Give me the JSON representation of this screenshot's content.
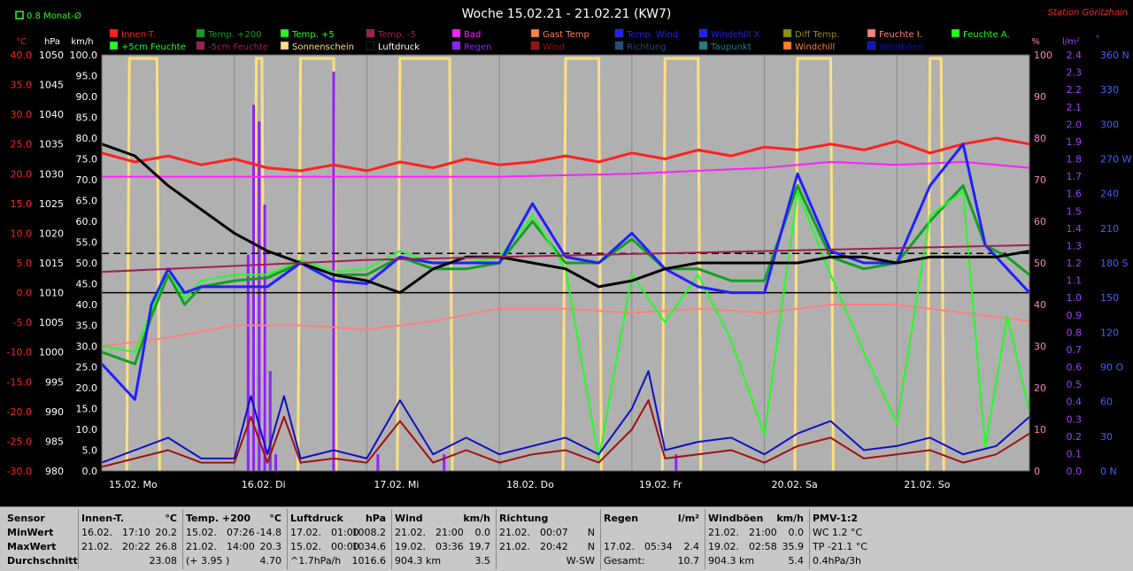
{
  "header": {
    "title": "Woche 15.02.21 - 21.02.21 (KW7)",
    "station": "Station Göritzhain",
    "month_avg_label": "0.8 Monat-Ø"
  },
  "legend": [
    {
      "label": "Innen-T.",
      "color": "#ff2020"
    },
    {
      "label": "Temp. +200",
      "color": "#10a020"
    },
    {
      "label": "Temp. +5",
      "color": "#20ff20"
    },
    {
      "label": "Temp. -5",
      "color": "#a02050"
    },
    {
      "label": "Bad",
      "color": "#ff20ff"
    },
    {
      "label": "Gast Temp",
      "color": "#ff8040"
    },
    {
      "label": "Temp. Wind",
      "color": "#2020ff"
    },
    {
      "label": "Windchill X",
      "color": "#2020ff"
    },
    {
      "label": "Diff Temp.",
      "color": "#909010"
    },
    {
      "label": "Feuchte I.",
      "color": "#ff8080"
    },
    {
      "label": "Feuchte A.",
      "color": "#20ff20"
    },
    {
      "label": "+5cm Feuchte",
      "color": "#20ff20"
    },
    {
      "label": "-5cm Feuchte",
      "color": "#a02050"
    },
    {
      "label": "Sonnenschein",
      "color": "#ffe080"
    },
    {
      "label": "Luftdruck",
      "color": "#000000"
    },
    {
      "label": "Regen",
      "color": "#9020ff"
    },
    {
      "label": "Wind",
      "color": "#a01010"
    },
    {
      "label": "Richtung",
      "color": "#205080"
    },
    {
      "label": "Taupunkt",
      "color": "#208080"
    },
    {
      "label": "Windchill",
      "color": "#ff8020"
    },
    {
      "label": "Windböen",
      "color": "#1010c0"
    }
  ],
  "axes": {
    "temp_unit": "°C",
    "hpa_unit": "hPa",
    "kmh_unit": "km/h",
    "pct_unit": "%",
    "rain_unit": "l/m²",
    "dir_unit": "°",
    "temp_ticks": [
      "40.0",
      "35.0",
      "30.0",
      "25.0",
      "20.0",
      "15.0",
      "10.0",
      "5.0",
      "0.0",
      "-5.0",
      "-10.0",
      "-15.0",
      "-20.0",
      "-25.0",
      "-30.0"
    ],
    "hpa_ticks": [
      "1050",
      "1045",
      "1040",
      "1035",
      "1030",
      "1025",
      "1020",
      "1015",
      "1010",
      "1005",
      "1000",
      "995",
      "990",
      "985",
      "980"
    ],
    "kmh_ticks": [
      "100.0",
      "95.0",
      "90.0",
      "85.0",
      "80.0",
      "75.0",
      "70.0",
      "65.0",
      "60.0",
      "55.0",
      "50.0",
      "45.0",
      "40.0",
      "35.0",
      "30.0",
      "25.0",
      "20.0",
      "15.0",
      "10.0",
      "5.0",
      "0.0"
    ],
    "pct_ticks": [
      "100",
      "90",
      "80",
      "70",
      "60",
      "50",
      "40",
      "30",
      "20",
      "10",
      "0"
    ],
    "rain_ticks": [
      "2.4",
      "2.3",
      "2.2",
      "2.1",
      "2.0",
      "1.9",
      "1.8",
      "1.7",
      "1.6",
      "1.5",
      "1.4",
      "1.3",
      "1.2",
      "1.1",
      "1.0",
      "0.9",
      "0.8",
      "0.7",
      "0.6",
      "0.5",
      "0.4",
      "0.3",
      "0.2",
      "0.1",
      "0.0"
    ],
    "dir_ticks": [
      "360 N",
      "330",
      "300",
      "270 W",
      "240",
      "210",
      "180 S",
      "150",
      "120",
      "90 O",
      "60",
      "30",
      "0 N"
    ],
    "day_labels": [
      "15.02. Mo",
      "16.02. Di",
      "17.02. Mi",
      "18.02. Do",
      "19.02. Fr",
      "20.02. Sa",
      "21.02. So"
    ]
  },
  "chart_data": {
    "type": "line",
    "title": "Woche 15.02.21 - 21.02.21 (KW7)",
    "x_unit": "hours since 15.02. 00:00",
    "xlim": [
      0,
      168
    ],
    "ylim_temp": [
      -30,
      40
    ],
    "ylim_kmh": [
      0,
      100
    ],
    "ylim_pct": [
      0,
      100
    ],
    "ylim_rain": [
      0,
      2.5
    ],
    "ylim_hpa": [
      980,
      1050
    ],
    "series": [
      {
        "name": "Innen-T.",
        "axis": "temp",
        "color": "#ff2020",
        "width": 3,
        "x": [
          0,
          6,
          12,
          18,
          24,
          30,
          36,
          42,
          48,
          54,
          60,
          66,
          72,
          78,
          84,
          90,
          96,
          102,
          108,
          114,
          120,
          126,
          132,
          138,
          144,
          150,
          156,
          162,
          168
        ],
        "y": [
          23.5,
          22.0,
          23.0,
          21.5,
          22.5,
          21.0,
          20.5,
          21.5,
          20.5,
          22.0,
          21.0,
          22.5,
          21.5,
          22.0,
          23.0,
          22.0,
          23.5,
          22.5,
          24.0,
          23.0,
          24.5,
          24.0,
          25.0,
          24.0,
          25.5,
          23.5,
          25.0,
          26.0,
          25.0
        ]
      },
      {
        "name": "Feuchte I.",
        "axis": "pct",
        "color": "#ff8080",
        "width": 2,
        "x": [
          0,
          12,
          24,
          36,
          48,
          60,
          72,
          84,
          96,
          108,
          120,
          132,
          144,
          156,
          168
        ],
        "y": [
          30,
          32,
          35,
          35,
          34,
          36,
          39,
          39,
          38,
          39,
          38,
          40,
          40,
          38,
          36
        ]
      },
      {
        "name": "Bad",
        "axis": "temp",
        "color": "#ff20ff",
        "width": 2,
        "x": [
          0,
          24,
          48,
          72,
          96,
          108,
          120,
          132,
          144,
          156,
          168
        ],
        "y": [
          19.5,
          19.5,
          19.5,
          19.5,
          20.0,
          20.5,
          21.0,
          22.0,
          21.5,
          22.0,
          21.0
        ]
      },
      {
        "name": "Temp. +200",
        "axis": "temp",
        "color": "#10a020",
        "width": 3,
        "x": [
          0,
          6,
          9,
          12,
          15,
          18,
          24,
          30,
          36,
          42,
          48,
          54,
          60,
          66,
          72,
          78,
          84,
          90,
          96,
          102,
          108,
          114,
          120,
          126,
          132,
          138,
          144,
          150,
          156,
          160,
          164,
          168
        ],
        "y": [
          -10,
          -12,
          -4,
          3,
          -2,
          1,
          2,
          2.5,
          5,
          3,
          3,
          6,
          4,
          4,
          5,
          12,
          5,
          5,
          9,
          4,
          4,
          2,
          2,
          18,
          6,
          4,
          5,
          12,
          18,
          8,
          6,
          3
        ]
      },
      {
        "name": "Temp. +5",
        "axis": "temp",
        "color": "#20ff20",
        "width": 2,
        "x": [
          0,
          6,
          9,
          12,
          15,
          18,
          24,
          30,
          36,
          42,
          48,
          54,
          60,
          66,
          72,
          78,
          84,
          90,
          96,
          102,
          108,
          114,
          120,
          126,
          132,
          138,
          144,
          150,
          156,
          160,
          164,
          168
        ],
        "y": [
          -9,
          -10,
          -3,
          4,
          -1,
          2,
          3,
          3,
          5.5,
          3.5,
          4,
          7,
          5,
          5,
          6,
          13,
          4,
          -28,
          3,
          -5,
          3,
          -8,
          -24,
          17,
          3,
          -10,
          -22,
          13,
          17,
          -26,
          -4,
          -20
        ]
      },
      {
        "name": "Temp. Wind",
        "axis": "temp",
        "color": "#2020ff",
        "width": 3,
        "x": [
          0,
          6,
          9,
          12,
          15,
          18,
          24,
          30,
          36,
          42,
          48,
          54,
          60,
          66,
          72,
          78,
          84,
          90,
          96,
          102,
          108,
          114,
          120,
          126,
          132,
          138,
          144,
          150,
          156,
          160,
          164,
          168
        ],
        "y": [
          -12,
          -18,
          -2,
          4,
          0,
          1,
          1,
          1,
          5,
          2,
          1.5,
          6,
          5,
          5,
          5,
          15,
          6,
          5,
          10,
          4,
          1,
          0,
          0,
          20,
          7,
          5,
          5,
          18,
          25,
          8,
          4,
          0
        ]
      },
      {
        "name": "Luftdruck",
        "axis": "hpa",
        "color": "#000000",
        "width": 3,
        "x": [
          0,
          6,
          12,
          18,
          24,
          30,
          36,
          42,
          48,
          54,
          60,
          66,
          72,
          78,
          84,
          90,
          96,
          102,
          108,
          114,
          120,
          126,
          132,
          138,
          144,
          150,
          156,
          162,
          168
        ],
        "y": [
          1035,
          1033,
          1028,
          1024,
          1020,
          1017,
          1015,
          1013,
          1012,
          1010,
          1014,
          1016,
          1016,
          1015,
          1014,
          1011,
          1012,
          1014,
          1015,
          1015,
          1015,
          1015,
          1016,
          1016,
          1015,
          1016,
          1016,
          1016,
          1017
        ]
      },
      {
        "name": "Temp. -5",
        "axis": "temp",
        "color": "#a02050",
        "width": 2,
        "x": [
          0,
          24,
          48,
          72,
          96,
          120,
          144,
          168
        ],
        "y": [
          3.5,
          4.5,
          5.5,
          6.0,
          6.5,
          7.0,
          7.5,
          8.0
        ]
      },
      {
        "name": "Windböen",
        "axis": "kmh",
        "color": "#1010c0",
        "width": 2,
        "x": [
          0,
          6,
          12,
          18,
          24,
          27,
          30,
          33,
          36,
          42,
          48,
          54,
          60,
          66,
          72,
          78,
          84,
          90,
          96,
          99,
          102,
          108,
          114,
          120,
          126,
          132,
          138,
          144,
          150,
          156,
          162,
          168
        ],
        "y": [
          2,
          5,
          8,
          3,
          3,
          18,
          4,
          18,
          3,
          5,
          3,
          17,
          4,
          8,
          4,
          6,
          8,
          4,
          15,
          24,
          5,
          7,
          8,
          4,
          9,
          12,
          5,
          6,
          8,
          4,
          6,
          13
        ]
      },
      {
        "name": "Wind",
        "axis": "kmh",
        "color": "#a01010",
        "width": 2,
        "x": [
          0,
          6,
          12,
          18,
          24,
          27,
          30,
          33,
          36,
          42,
          48,
          54,
          60,
          66,
          72,
          78,
          84,
          90,
          96,
          99,
          102,
          108,
          114,
          120,
          126,
          132,
          138,
          144,
          150,
          156,
          162,
          168
        ],
        "y": [
          1,
          3,
          5,
          2,
          2,
          13,
          2,
          13,
          2,
          3,
          2,
          12,
          2,
          5,
          2,
          4,
          5,
          2,
          10,
          17,
          3,
          4,
          5,
          2,
          6,
          8,
          3,
          4,
          5,
          2,
          4,
          9
        ]
      }
    ],
    "sunshine_intervals": [
      [
        5,
        10
      ],
      [
        28,
        29
      ],
      [
        36,
        42
      ],
      [
        54,
        63
      ],
      [
        84,
        90
      ],
      [
        102,
        108
      ],
      [
        126,
        132
      ],
      [
        150,
        152
      ]
    ],
    "rain_bars": [
      {
        "x": 26.5,
        "mm": 1.3
      },
      {
        "x": 27.5,
        "mm": 2.2
      },
      {
        "x": 28.5,
        "mm": 2.1
      },
      {
        "x": 29.5,
        "mm": 1.6
      },
      {
        "x": 30.5,
        "mm": 0.6
      },
      {
        "x": 31.5,
        "mm": 0.1
      },
      {
        "x": 42,
        "mm": 2.4
      },
      {
        "x": 50,
        "mm": 0.1
      },
      {
        "x": 62,
        "mm": 0.1
      },
      {
        "x": 104,
        "mm": 0.1
      }
    ],
    "reference_lines": [
      {
        "name": "Luftdruck Ø",
        "axis": "hpa",
        "value": 1016.6,
        "color": "#000000",
        "dash": true
      },
      {
        "name": "0°C",
        "axis": "temp",
        "value": 0,
        "color": "#000000",
        "dash": false
      }
    ]
  },
  "stats": {
    "row_labels": [
      "Sensor",
      "MinWert",
      "MaxWert",
      "Durchschnitt"
    ],
    "columns": [
      {
        "head": "Innen-T.",
        "unit": "°C",
        "rows": [
          [
            "16.02.",
            "17:10",
            "20.2"
          ],
          [
            "21.02.",
            "20:22",
            "26.8"
          ],
          [
            "",
            "",
            "23.08"
          ]
        ]
      },
      {
        "head": "Temp. +200",
        "unit": "°C",
        "rows": [
          [
            "15.02.",
            "07:26",
            "-14.8"
          ],
          [
            "21.02.",
            "14:00",
            "20.3"
          ],
          [
            "(+ 3.95 )",
            "",
            "4.70"
          ]
        ]
      },
      {
        "head": "Luftdruck",
        "unit": "hPa",
        "rows": [
          [
            "17.02.",
            "01:00",
            "1008.2"
          ],
          [
            "15.02.",
            "00:00",
            "1034.6"
          ],
          [
            "^1.7hPa/h",
            "",
            "1016.6"
          ]
        ]
      },
      {
        "head": "Wind",
        "unit": "km/h",
        "rows": [
          [
            "21.02.",
            "21:00",
            "0.0"
          ],
          [
            "19.02.",
            "03:36",
            "19.7"
          ],
          [
            "904.3 km",
            "",
            "3.5"
          ]
        ]
      },
      {
        "head": "Richtung",
        "unit": "",
        "rows": [
          [
            "21.02.",
            "00:07",
            "N"
          ],
          [
            "21.02.",
            "20:42",
            "N"
          ],
          [
            "",
            "",
            "W-SW"
          ]
        ]
      },
      {
        "head": "Regen",
        "unit": "l/m²",
        "rows": [
          [
            "",
            "",
            ""
          ],
          [
            "17.02.",
            "05:34",
            "2.4"
          ],
          [
            "Gesamt:",
            "",
            "10.7"
          ]
        ]
      },
      {
        "head": "Windböen",
        "unit": "km/h",
        "rows": [
          [
            "21.02.",
            "21:00",
            "0.0"
          ],
          [
            "19.02.",
            "02:58",
            "35.9"
          ],
          [
            "904.3 km",
            "",
            "5.4"
          ]
        ]
      },
      {
        "head": "PMV-1:2",
        "unit": "",
        "rows": [
          [
            "WC 1.2 °C",
            "",
            ""
          ],
          [
            "TP -21.1 °C",
            "",
            ""
          ],
          [
            "0.4hPa/3h",
            "",
            ""
          ]
        ]
      }
    ]
  }
}
